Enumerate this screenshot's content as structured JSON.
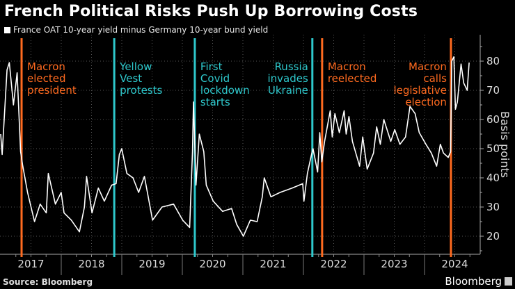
{
  "title": "French Political Risks Push Up Borrowing Costs",
  "source": "Source: Bloomberg",
  "brand": "Bloomberg",
  "colors": {
    "line": "#ffffff",
    "orange": "#ff6a1f",
    "teal": "#2ec8cc",
    "grid": "#555555",
    "background": "#000000"
  },
  "chart_data": {
    "type": "line",
    "title": "French Political Risks Push Up Borrowing Costs",
    "ylabel": "Basis points",
    "ylim": [
      15,
      85
    ],
    "yticks": [
      20,
      30,
      40,
      50,
      60,
      70,
      80
    ],
    "y_axis_side": "right",
    "xticks": [
      "2017",
      "2018",
      "2019",
      "2020",
      "2021",
      "2022",
      "2023",
      "2024"
    ],
    "grid": true,
    "legend_placement": "top-left",
    "series": [
      {
        "name": "France OAT 10-year yield minus Germany 10-year bund yield",
        "points": [
          [
            "2017-01-01",
            55
          ],
          [
            "2017-01-10",
            48
          ],
          [
            "2017-02-08",
            77
          ],
          [
            "2017-02-22",
            79.5
          ],
          [
            "2017-03-19",
            65
          ],
          [
            "2017-04-10",
            76
          ],
          [
            "2017-05-01",
            49
          ],
          [
            "2017-05-13",
            44.5
          ],
          [
            "2017-06-12",
            35
          ],
          [
            "2017-07-24",
            25
          ],
          [
            "2017-08-27",
            31
          ],
          [
            "2017-10-03",
            28
          ],
          [
            "2017-10-15",
            41.5
          ],
          [
            "2017-11-27",
            31
          ],
          [
            "2018-01-01",
            35
          ],
          [
            "2018-01-18",
            28
          ],
          [
            "2018-03-03",
            25.5
          ],
          [
            "2018-04-21",
            21.5
          ],
          [
            "2018-05-21",
            30
          ],
          [
            "2018-06-03",
            40.5
          ],
          [
            "2018-07-06",
            28
          ],
          [
            "2018-08-13",
            36.5
          ],
          [
            "2018-09-18",
            32
          ],
          [
            "2018-11-01",
            37.5
          ],
          [
            "2018-11-28",
            38
          ],
          [
            "2018-12-18",
            48
          ],
          [
            "2019-01-01",
            50
          ],
          [
            "2019-02-01",
            41.5
          ],
          [
            "2019-03-10",
            40
          ],
          [
            "2019-04-13",
            35
          ],
          [
            "2019-05-18",
            40.5
          ],
          [
            "2019-07-06",
            25.5
          ],
          [
            "2019-09-01",
            30
          ],
          [
            "2019-11-10",
            31
          ],
          [
            "2020-01-04",
            25.5
          ],
          [
            "2020-02-15",
            23
          ],
          [
            "2020-03-03",
            49
          ],
          [
            "2020-03-09",
            66
          ],
          [
            "2020-03-24",
            37.5
          ],
          [
            "2020-04-13",
            55
          ],
          [
            "2020-05-10",
            49
          ],
          [
            "2020-05-25",
            37.5
          ],
          [
            "2020-07-06",
            32
          ],
          [
            "2020-09-01",
            28.5
          ],
          [
            "2020-10-25",
            29.5
          ],
          [
            "2020-11-25",
            24
          ],
          [
            "2021-01-04",
            20
          ],
          [
            "2021-02-15",
            25.5
          ],
          [
            "2021-03-28",
            25
          ],
          [
            "2021-04-28",
            33.5
          ],
          [
            "2021-05-10",
            40
          ],
          [
            "2021-06-19",
            33.5
          ],
          [
            "2021-08-13",
            35
          ],
          [
            "2021-10-25",
            36.5
          ],
          [
            "2021-12-28",
            38
          ],
          [
            "2022-01-04",
            32
          ],
          [
            "2022-01-25",
            41.5
          ],
          [
            "2022-02-19",
            48
          ],
          [
            "2022-02-28",
            50
          ],
          [
            "2022-03-28",
            42
          ],
          [
            "2022-04-10",
            55.5
          ],
          [
            "2022-04-22",
            45.5
          ],
          [
            "2022-05-09",
            52.5
          ],
          [
            "2022-06-12",
            63
          ],
          [
            "2022-06-24",
            54
          ],
          [
            "2022-07-10",
            62
          ],
          [
            "2022-08-06",
            55.5
          ],
          [
            "2022-09-04",
            63
          ],
          [
            "2022-09-16",
            55
          ],
          [
            "2022-10-03",
            61
          ],
          [
            "2022-10-24",
            52.5
          ],
          [
            "2022-12-06",
            44
          ],
          [
            "2022-12-25",
            54
          ],
          [
            "2023-01-21",
            43
          ],
          [
            "2023-02-28",
            48.5
          ],
          [
            "2023-03-19",
            57.5
          ],
          [
            "2023-04-10",
            51.5
          ],
          [
            "2023-05-01",
            60
          ],
          [
            "2023-06-12",
            52.5
          ],
          [
            "2023-07-06",
            56.5
          ],
          [
            "2023-08-06",
            51.5
          ],
          [
            "2023-09-09",
            54
          ],
          [
            "2023-10-06",
            64.5
          ],
          [
            "2023-11-06",
            62
          ],
          [
            "2023-12-01",
            55.5
          ],
          [
            "2024-01-10",
            51.5
          ],
          [
            "2024-02-12",
            48.5
          ],
          [
            "2024-03-15",
            44
          ],
          [
            "2024-04-06",
            51.5
          ],
          [
            "2024-04-25",
            48.5
          ],
          [
            "2024-05-24",
            47
          ],
          [
            "2024-06-07",
            49
          ],
          [
            "2024-06-14",
            80
          ],
          [
            "2024-06-27",
            81.5
          ],
          [
            "2024-07-06",
            63.5
          ],
          [
            "2024-07-18",
            66
          ],
          [
            "2024-08-09",
            79
          ],
          [
            "2024-08-25",
            72.5
          ],
          [
            "2024-09-15",
            70
          ],
          [
            "2024-09-27",
            79.5
          ]
        ]
      }
    ],
    "events": [
      {
        "date": "2017-05-07",
        "label": "Macron\nelected\npresident",
        "color": "orange",
        "align": "right"
      },
      {
        "date": "2018-11-17",
        "label": "Yellow\nVest\nprotests",
        "color": "teal",
        "align": "right"
      },
      {
        "date": "2020-03-17",
        "label": "First\nCovid\nlockdown\nstarts",
        "color": "teal",
        "align": "right"
      },
      {
        "date": "2022-02-24",
        "label": "Russia\ninvades\nUkraine",
        "color": "teal",
        "align": "left"
      },
      {
        "date": "2022-04-24",
        "label": "Macron\nreelected",
        "color": "orange",
        "align": "right"
      },
      {
        "date": "2024-06-09",
        "label": "Macron\ncalls\nlegislative\nelection",
        "color": "orange",
        "align": "left"
      }
    ]
  }
}
